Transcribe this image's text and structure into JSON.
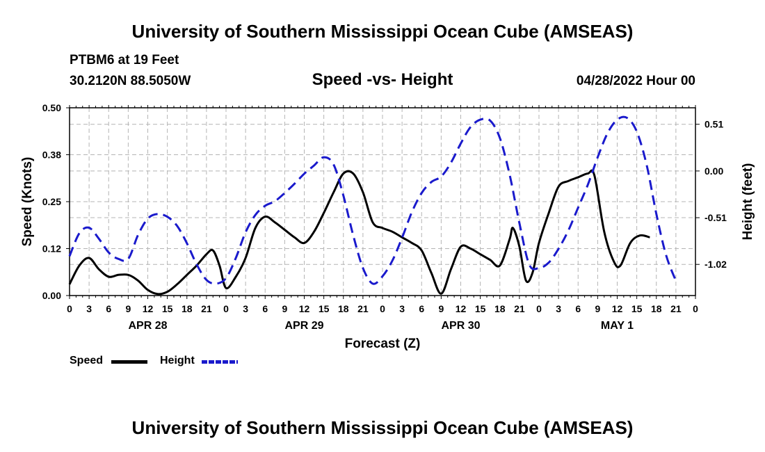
{
  "header": {
    "title": "University of Southern Mississippi Ocean Cube (AMSEAS)",
    "station": "PTBM6 at 19 Feet",
    "coords": "30.2120N  88.5050W",
    "subtitle": "Speed -vs- Height",
    "datetime": "04/28/2022 Hour 00"
  },
  "footer": {
    "title": "University of Southern Mississippi Ocean Cube (AMSEAS)"
  },
  "legend": {
    "speed_label": "Speed",
    "height_label": "Height"
  },
  "colors": {
    "speed": "#000000",
    "height": "#1a1acc",
    "grid": "#b4b4b4"
  },
  "chart_data": {
    "type": "line",
    "title": "Speed -vs- Height",
    "xlabel": "Forecast (Z)",
    "ylabel": "Speed (Knots)",
    "y2label": "Height (feet)",
    "xlim": [
      0,
      96
    ],
    "ylim": [
      0,
      0.5
    ],
    "y2lim": [
      -1.36,
      0.69
    ],
    "x_tick_labels": [
      "0",
      "3",
      "6",
      "9",
      "12",
      "15",
      "18",
      "21",
      "0",
      "3",
      "6",
      "9",
      "12",
      "15",
      "18",
      "21",
      "0",
      "3",
      "6",
      "9",
      "12",
      "15",
      "18",
      "21",
      "0",
      "3",
      "6",
      "9",
      "12",
      "15",
      "18",
      "21",
      "0"
    ],
    "day_labels": [
      {
        "label": "APR 28",
        "x": 12
      },
      {
        "label": "APR 29",
        "x": 36
      },
      {
        "label": "APR 30",
        "x": 60
      },
      {
        "label": "MAY 1",
        "x": 84
      }
    ],
    "y_ticks": [
      {
        "value": 0.0,
        "label": "0.00"
      },
      {
        "value": 0.125,
        "label": "0.12"
      },
      {
        "value": 0.25,
        "label": "0.25"
      },
      {
        "value": 0.375,
        "label": "0.38"
      },
      {
        "value": 0.5,
        "label": "0.50"
      }
    ],
    "y2_ticks": [
      {
        "value": 0.51,
        "label": "0.51"
      },
      {
        "value": 0.0,
        "label": "0.00"
      },
      {
        "value": -0.51,
        "label": "-0.51"
      },
      {
        "value": -1.02,
        "label": "-1.02"
      }
    ],
    "series": [
      {
        "name": "Speed",
        "axis": "left",
        "style": "solid",
        "points": [
          [
            0,
            0.03
          ],
          [
            1.5,
            0.08
          ],
          [
            3,
            0.1
          ],
          [
            4.5,
            0.07
          ],
          [
            6,
            0.05
          ],
          [
            7.5,
            0.055
          ],
          [
            9,
            0.055
          ],
          [
            10.5,
            0.04
          ],
          [
            12,
            0.015
          ],
          [
            13.5,
            0.004
          ],
          [
            15,
            0.01
          ],
          [
            16.5,
            0.03
          ],
          [
            18,
            0.055
          ],
          [
            19.5,
            0.08
          ],
          [
            21,
            0.11
          ],
          [
            22,
            0.12
          ],
          [
            23,
            0.08
          ],
          [
            24,
            0.02
          ],
          [
            25.5,
            0.05
          ],
          [
            27,
            0.1
          ],
          [
            28.5,
            0.18
          ],
          [
            30,
            0.21
          ],
          [
            31.5,
            0.195
          ],
          [
            33,
            0.175
          ],
          [
            34.5,
            0.155
          ],
          [
            36,
            0.14
          ],
          [
            37.5,
            0.17
          ],
          [
            39,
            0.22
          ],
          [
            40.5,
            0.275
          ],
          [
            42,
            0.325
          ],
          [
            43.5,
            0.325
          ],
          [
            45,
            0.275
          ],
          [
            46.5,
            0.195
          ],
          [
            48,
            0.18
          ],
          [
            49.5,
            0.17
          ],
          [
            51,
            0.155
          ],
          [
            52.5,
            0.14
          ],
          [
            54,
            0.12
          ],
          [
            55.5,
            0.06
          ],
          [
            57,
            0.005
          ],
          [
            58.5,
            0.07
          ],
          [
            60,
            0.13
          ],
          [
            61.5,
            0.125
          ],
          [
            63,
            0.11
          ],
          [
            64.5,
            0.095
          ],
          [
            66,
            0.08
          ],
          [
            67.5,
            0.15
          ],
          [
            68,
            0.18
          ],
          [
            69,
            0.13
          ],
          [
            70,
            0.04
          ],
          [
            71,
            0.06
          ],
          [
            72,
            0.14
          ],
          [
            73.5,
            0.22
          ],
          [
            75,
            0.29
          ],
          [
            76.5,
            0.305
          ],
          [
            78,
            0.315
          ],
          [
            79.5,
            0.325
          ],
          [
            80.5,
            0.32
          ],
          [
            82,
            0.17
          ],
          [
            83.5,
            0.09
          ],
          [
            84.5,
            0.08
          ],
          [
            86,
            0.14
          ],
          [
            87.5,
            0.16
          ],
          [
            89,
            0.155
          ]
        ]
      },
      {
        "name": "Height",
        "axis": "right",
        "style": "dashed",
        "points": [
          [
            0,
            -0.93
          ],
          [
            1.5,
            -0.68
          ],
          [
            3,
            -0.62
          ],
          [
            4.5,
            -0.74
          ],
          [
            6,
            -0.89
          ],
          [
            7.5,
            -0.96
          ],
          [
            9,
            -0.96
          ],
          [
            10.5,
            -0.7
          ],
          [
            12,
            -0.52
          ],
          [
            13.5,
            -0.47
          ],
          [
            15,
            -0.5
          ],
          [
            16.5,
            -0.6
          ],
          [
            18,
            -0.79
          ],
          [
            19.5,
            -1.02
          ],
          [
            21,
            -1.19
          ],
          [
            22.5,
            -1.23
          ],
          [
            24,
            -1.17
          ],
          [
            25.5,
            -0.95
          ],
          [
            27,
            -0.67
          ],
          [
            28.5,
            -0.48
          ],
          [
            30,
            -0.38
          ],
          [
            31.5,
            -0.33
          ],
          [
            33,
            -0.24
          ],
          [
            34.5,
            -0.14
          ],
          [
            36,
            -0.03
          ],
          [
            37.5,
            0.06
          ],
          [
            39,
            0.15
          ],
          [
            40.5,
            0.07
          ],
          [
            42,
            -0.27
          ],
          [
            43.5,
            -0.7
          ],
          [
            45,
            -1.06
          ],
          [
            46.5,
            -1.23
          ],
          [
            48,
            -1.15
          ],
          [
            49.5,
            -0.98
          ],
          [
            51,
            -0.73
          ],
          [
            52.5,
            -0.45
          ],
          [
            54,
            -0.24
          ],
          [
            55.5,
            -0.12
          ],
          [
            57,
            -0.06
          ],
          [
            58.5,
            0.09
          ],
          [
            60,
            0.3
          ],
          [
            61.5,
            0.48
          ],
          [
            63,
            0.56
          ],
          [
            64.5,
            0.55
          ],
          [
            66,
            0.36
          ],
          [
            67.5,
            -0.04
          ],
          [
            69,
            -0.57
          ],
          [
            70.5,
            -1.02
          ],
          [
            72,
            -1.06
          ],
          [
            73.5,
            -1.0
          ],
          [
            75,
            -0.85
          ],
          [
            76.5,
            -0.65
          ],
          [
            78,
            -0.4
          ],
          [
            79.5,
            -0.15
          ],
          [
            81,
            0.15
          ],
          [
            82.5,
            0.41
          ],
          [
            84,
            0.56
          ],
          [
            85.5,
            0.58
          ],
          [
            87,
            0.43
          ],
          [
            88.5,
            0.07
          ],
          [
            90,
            -0.47
          ],
          [
            91.5,
            -0.92
          ],
          [
            93,
            -1.2
          ]
        ]
      }
    ]
  }
}
